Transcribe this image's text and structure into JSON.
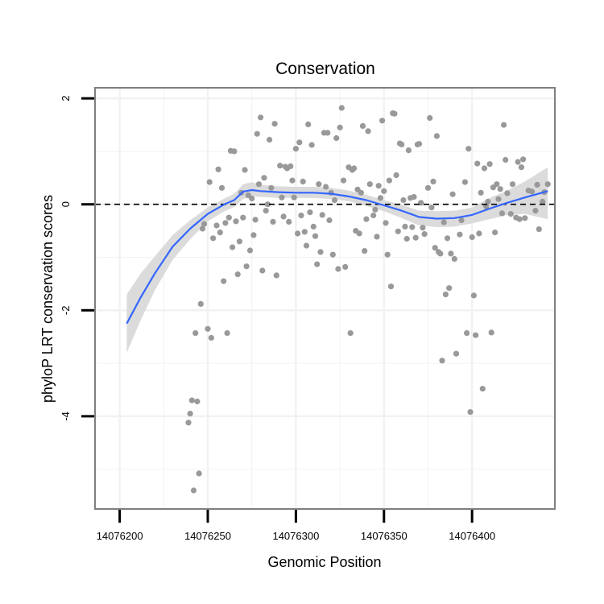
{
  "chart_data": {
    "type": "scatter",
    "title": "Conservation",
    "xlabel": "Genomic Position",
    "ylabel": "phyloP LRT conservation scores",
    "x_reversed": true,
    "xlim": [
      14076186,
      14076447
    ],
    "ylim": [
      -5.75,
      2.2
    ],
    "x_ticks": [
      14076400,
      14076350,
      14076300,
      14076250,
      14076200
    ],
    "x_tick_labels": [
      "14076400",
      "14076350",
      "14076300",
      "14076250",
      "14076200"
    ],
    "y_ticks": [
      2,
      0,
      -2,
      -4
    ],
    "y_tick_labels": [
      "2",
      "0",
      "-2",
      "-4"
    ],
    "reference_line": {
      "y": 0,
      "style": "dashed",
      "color": "#000000"
    },
    "grid": true,
    "colors": {
      "points": "#999999",
      "smooth_line": "#3366ff",
      "smooth_band": "#d9d9d9",
      "grid": "#f2f2f2",
      "panel_border": "#7f7f7f"
    },
    "series": [
      {
        "name": "phyloP scores",
        "points": [
          [
            14076443,
            0.38
          ],
          [
            14076441,
            0.23
          ],
          [
            14076440,
            0.05
          ],
          [
            14076438,
            -0.47
          ],
          [
            14076437,
            0.37
          ],
          [
            14076436,
            -0.12
          ],
          [
            14076434,
            0.24
          ],
          [
            14076432,
            0.26
          ],
          [
            14076430,
            -0.26
          ],
          [
            14076429,
            0.85
          ],
          [
            14076428,
            0.7
          ],
          [
            14076427,
            -0.28
          ],
          [
            14076426,
            0.8
          ],
          [
            14076425,
            -0.25
          ],
          [
            14076423,
            0.38
          ],
          [
            14076422,
            -0.18
          ],
          [
            14076420,
            0.21
          ],
          [
            14076419,
            0.84
          ],
          [
            14076418,
            1.5
          ],
          [
            14076417,
            -0.17
          ],
          [
            14076416,
            0.29
          ],
          [
            14076415,
            0.1
          ],
          [
            14076414,
            0.38
          ],
          [
            14076413,
            -0.53
          ],
          [
            14076412,
            0.32
          ],
          [
            14076411,
            -2.42
          ],
          [
            14076410,
            0.76
          ],
          [
            14076409,
            0.05
          ],
          [
            14076408,
            -0.04
          ],
          [
            14076407,
            0.68
          ],
          [
            14076406,
            -3.48
          ],
          [
            14076405,
            0.22
          ],
          [
            14076404,
            -0.55
          ],
          [
            14076403,
            0.77
          ],
          [
            14076402,
            -2.47
          ],
          [
            14076401,
            -1.72
          ],
          [
            14076400,
            -0.62
          ],
          [
            14076399,
            -3.92
          ],
          [
            14076398,
            1.05
          ],
          [
            14076397,
            -2.43
          ],
          [
            14076396,
            0.42
          ],
          [
            14076394,
            -0.3
          ],
          [
            14076393,
            -0.57
          ],
          [
            14076391,
            -2.82
          ],
          [
            14076390,
            -1.03
          ],
          [
            14076389,
            0.19
          ],
          [
            14076388,
            -0.93
          ],
          [
            14076387,
            -1.58
          ],
          [
            14076386,
            -0.64
          ],
          [
            14076385,
            -1.7
          ],
          [
            14076384,
            -0.34
          ],
          [
            14076383,
            -2.95
          ],
          [
            14076382,
            -0.93
          ],
          [
            14076381,
            -0.9
          ],
          [
            14076380,
            1.29
          ],
          [
            14076379,
            -0.82
          ],
          [
            14076378,
            0.43
          ],
          [
            14076377,
            -0.06
          ],
          [
            14076376,
            1.63
          ],
          [
            14076375,
            0.31
          ],
          [
            14076373,
            -0.56
          ],
          [
            14076372,
            -0.44
          ],
          [
            14076371,
            0.03
          ],
          [
            14076370,
            1.14
          ],
          [
            14076369,
            1.13
          ],
          [
            14076368,
            -0.63
          ],
          [
            14076367,
            0.14
          ],
          [
            14076366,
            -0.43
          ],
          [
            14076365,
            0.12
          ],
          [
            14076364,
            1.02
          ],
          [
            14076363,
            -0.65
          ],
          [
            14076362,
            -0.42
          ],
          [
            14076361,
            0.08
          ],
          [
            14076360,
            1.13
          ],
          [
            14076359,
            1.15
          ],
          [
            14076358,
            -0.51
          ],
          [
            14076357,
            0.55
          ],
          [
            14076356,
            1.71
          ],
          [
            14076355,
            1.72
          ],
          [
            14076354,
            -1.55
          ],
          [
            14076353,
            0.45
          ],
          [
            14076352,
            -0.95
          ],
          [
            14076351,
            -0.35
          ],
          [
            14076350,
            0.25
          ],
          [
            14076349,
            1.58
          ],
          [
            14076348,
            0.12
          ],
          [
            14076347,
            0.35
          ],
          [
            14076346,
            -0.61
          ],
          [
            14076345,
            -0.1
          ],
          [
            14076344,
            -0.21
          ],
          [
            14076342,
            0.38
          ],
          [
            14076341,
            1.38
          ],
          [
            14076340,
            -0.28
          ],
          [
            14076339,
            -0.88
          ],
          [
            14076338,
            1.48
          ],
          [
            14076337,
            0.22
          ],
          [
            14076336,
            -0.55
          ],
          [
            14076335,
            0.28
          ],
          [
            14076334,
            -0.5
          ],
          [
            14076333,
            0.68
          ],
          [
            14076332,
            0.65
          ],
          [
            14076331,
            -2.43
          ],
          [
            14076330,
            0.7
          ],
          [
            14076328,
            -1.18
          ],
          [
            14076327,
            0.45
          ],
          [
            14076326,
            1.82
          ],
          [
            14076325,
            1.45
          ],
          [
            14076324,
            -1.22
          ],
          [
            14076323,
            1.25
          ],
          [
            14076322,
            0.08
          ],
          [
            14076321,
            -0.95
          ],
          [
            14076320,
            0.22
          ],
          [
            14076319,
            -0.3
          ],
          [
            14076318,
            1.35
          ],
          [
            14076317,
            0.33
          ],
          [
            14076316,
            1.35
          ],
          [
            14076315,
            -0.2
          ],
          [
            14076314,
            -0.9
          ],
          [
            14076313,
            0.38
          ],
          [
            14076312,
            -1.13
          ],
          [
            14076311,
            -0.6
          ],
          [
            14076310,
            -0.42
          ],
          [
            14076309,
            1.12
          ],
          [
            14076308,
            -0.15
          ],
          [
            14076307,
            1.51
          ],
          [
            14076306,
            -0.78
          ],
          [
            14076305,
            -0.52
          ],
          [
            14076304,
            0.43
          ],
          [
            14076303,
            -0.21
          ],
          [
            14076302,
            1.17
          ],
          [
            14076301,
            -0.55
          ],
          [
            14076300,
            1.05
          ],
          [
            14076299,
            0.13
          ],
          [
            14076298,
            0.45
          ],
          [
            14076297,
            0.72
          ],
          [
            14076296,
            -0.33
          ],
          [
            14076295,
            0.68
          ],
          [
            14076294,
            0.71
          ],
          [
            14076293,
            -0.23
          ],
          [
            14076292,
            0.13
          ],
          [
            14076291,
            0.73
          ],
          [
            14076289,
            -1.34
          ],
          [
            14076288,
            1.52
          ],
          [
            14076287,
            -0.33
          ],
          [
            14076286,
            0.31
          ],
          [
            14076285,
            1.22
          ],
          [
            14076284,
            0.0
          ],
          [
            14076283,
            -0.12
          ],
          [
            14076282,
            0.5
          ],
          [
            14076281,
            -1.25
          ],
          [
            14076280,
            1.64
          ],
          [
            14076279,
            0.38
          ],
          [
            14076278,
            1.33
          ],
          [
            14076277,
            -0.29
          ],
          [
            14076276,
            -0.58
          ],
          [
            14076275,
            0.11
          ],
          [
            14076274,
            -0.87
          ],
          [
            14076273,
            0.17
          ],
          [
            14076272,
            -1.17
          ],
          [
            14076271,
            0.65
          ],
          [
            14076270,
            -0.25
          ],
          [
            14076269,
            0.22
          ],
          [
            14076268,
            -0.7
          ],
          [
            14076267,
            -1.32
          ],
          [
            14076266,
            -0.32
          ],
          [
            14076265,
            1.0
          ],
          [
            14076264,
            -0.81
          ],
          [
            14076263,
            1.01
          ],
          [
            14076262,
            -0.25
          ],
          [
            14076261,
            -2.43
          ],
          [
            14076260,
            -0.35
          ],
          [
            14076259,
            -1.45
          ],
          [
            14076258,
            0.31
          ],
          [
            14076257,
            -0.53
          ],
          [
            14076256,
            0.66
          ],
          [
            14076255,
            -0.4
          ],
          [
            14076253,
            -0.64
          ],
          [
            14076252,
            -2.52
          ],
          [
            14076251,
            0.42
          ],
          [
            14076250,
            -2.35
          ],
          [
            14076248,
            -0.37
          ],
          [
            14076247,
            -0.46
          ],
          [
            14076246,
            -1.88
          ],
          [
            14076245,
            -5.08
          ],
          [
            14076244,
            -3.72
          ],
          [
            14076243,
            -2.43
          ],
          [
            14076242,
            -5.4
          ],
          [
            14076241,
            -3.7
          ],
          [
            14076240,
            -3.95
          ],
          [
            14076239,
            -4.12
          ]
        ]
      },
      {
        "name": "smoothed fit",
        "type": "line",
        "points": [
          [
            14076443,
            0.25
          ],
          [
            14076430,
            0.13
          ],
          [
            14076420,
            0.03
          ],
          [
            14076410,
            -0.08
          ],
          [
            14076400,
            -0.2
          ],
          [
            14076390,
            -0.26
          ],
          [
            14076380,
            -0.27
          ],
          [
            14076370,
            -0.24
          ],
          [
            14076360,
            -0.12
          ],
          [
            14076350,
            -0.02
          ],
          [
            14076340,
            0.08
          ],
          [
            14076330,
            0.15
          ],
          [
            14076320,
            0.2
          ],
          [
            14076310,
            0.22
          ],
          [
            14076300,
            0.22
          ],
          [
            14076290,
            0.23
          ],
          [
            14076280,
            0.25
          ],
          [
            14076275,
            0.27
          ],
          [
            14076270,
            0.24
          ],
          [
            14076265,
            0.08
          ],
          [
            14076260,
            0.01
          ],
          [
            14076250,
            -0.18
          ],
          [
            14076240,
            -0.46
          ],
          [
            14076230,
            -0.8
          ],
          [
            14076220,
            -1.3
          ],
          [
            14076212,
            -1.75
          ],
          [
            14076204,
            -2.25
          ]
        ]
      }
    ],
    "confidence_band": {
      "x": [
        14076443,
        14076430,
        14076420,
        14076410,
        14076400,
        14076390,
        14076380,
        14076370,
        14076360,
        14076350,
        14076340,
        14076330,
        14076320,
        14076310,
        14076300,
        14076290,
        14076280,
        14076275,
        14076270,
        14076265,
        14076260,
        14076250,
        14076240,
        14076230,
        14076220,
        14076212,
        14076204
      ],
      "upper": [
        0.7,
        0.43,
        0.26,
        0.12,
        -0.06,
        -0.12,
        -0.13,
        -0.12,
        -0.01,
        0.08,
        0.18,
        0.26,
        0.31,
        0.33,
        0.33,
        0.34,
        0.37,
        0.42,
        0.38,
        0.2,
        0.12,
        -0.06,
        -0.3,
        -0.58,
        -0.98,
        -1.3,
        -1.7
      ],
      "lower": [
        -0.28,
        -0.18,
        -0.2,
        -0.28,
        -0.36,
        -0.42,
        -0.43,
        -0.4,
        -0.26,
        -0.13,
        -0.03,
        0.06,
        0.1,
        0.12,
        0.12,
        0.12,
        0.14,
        0.15,
        0.1,
        -0.05,
        -0.12,
        -0.32,
        -0.66,
        -1.05,
        -1.62,
        -2.18,
        -2.8
      ]
    }
  }
}
